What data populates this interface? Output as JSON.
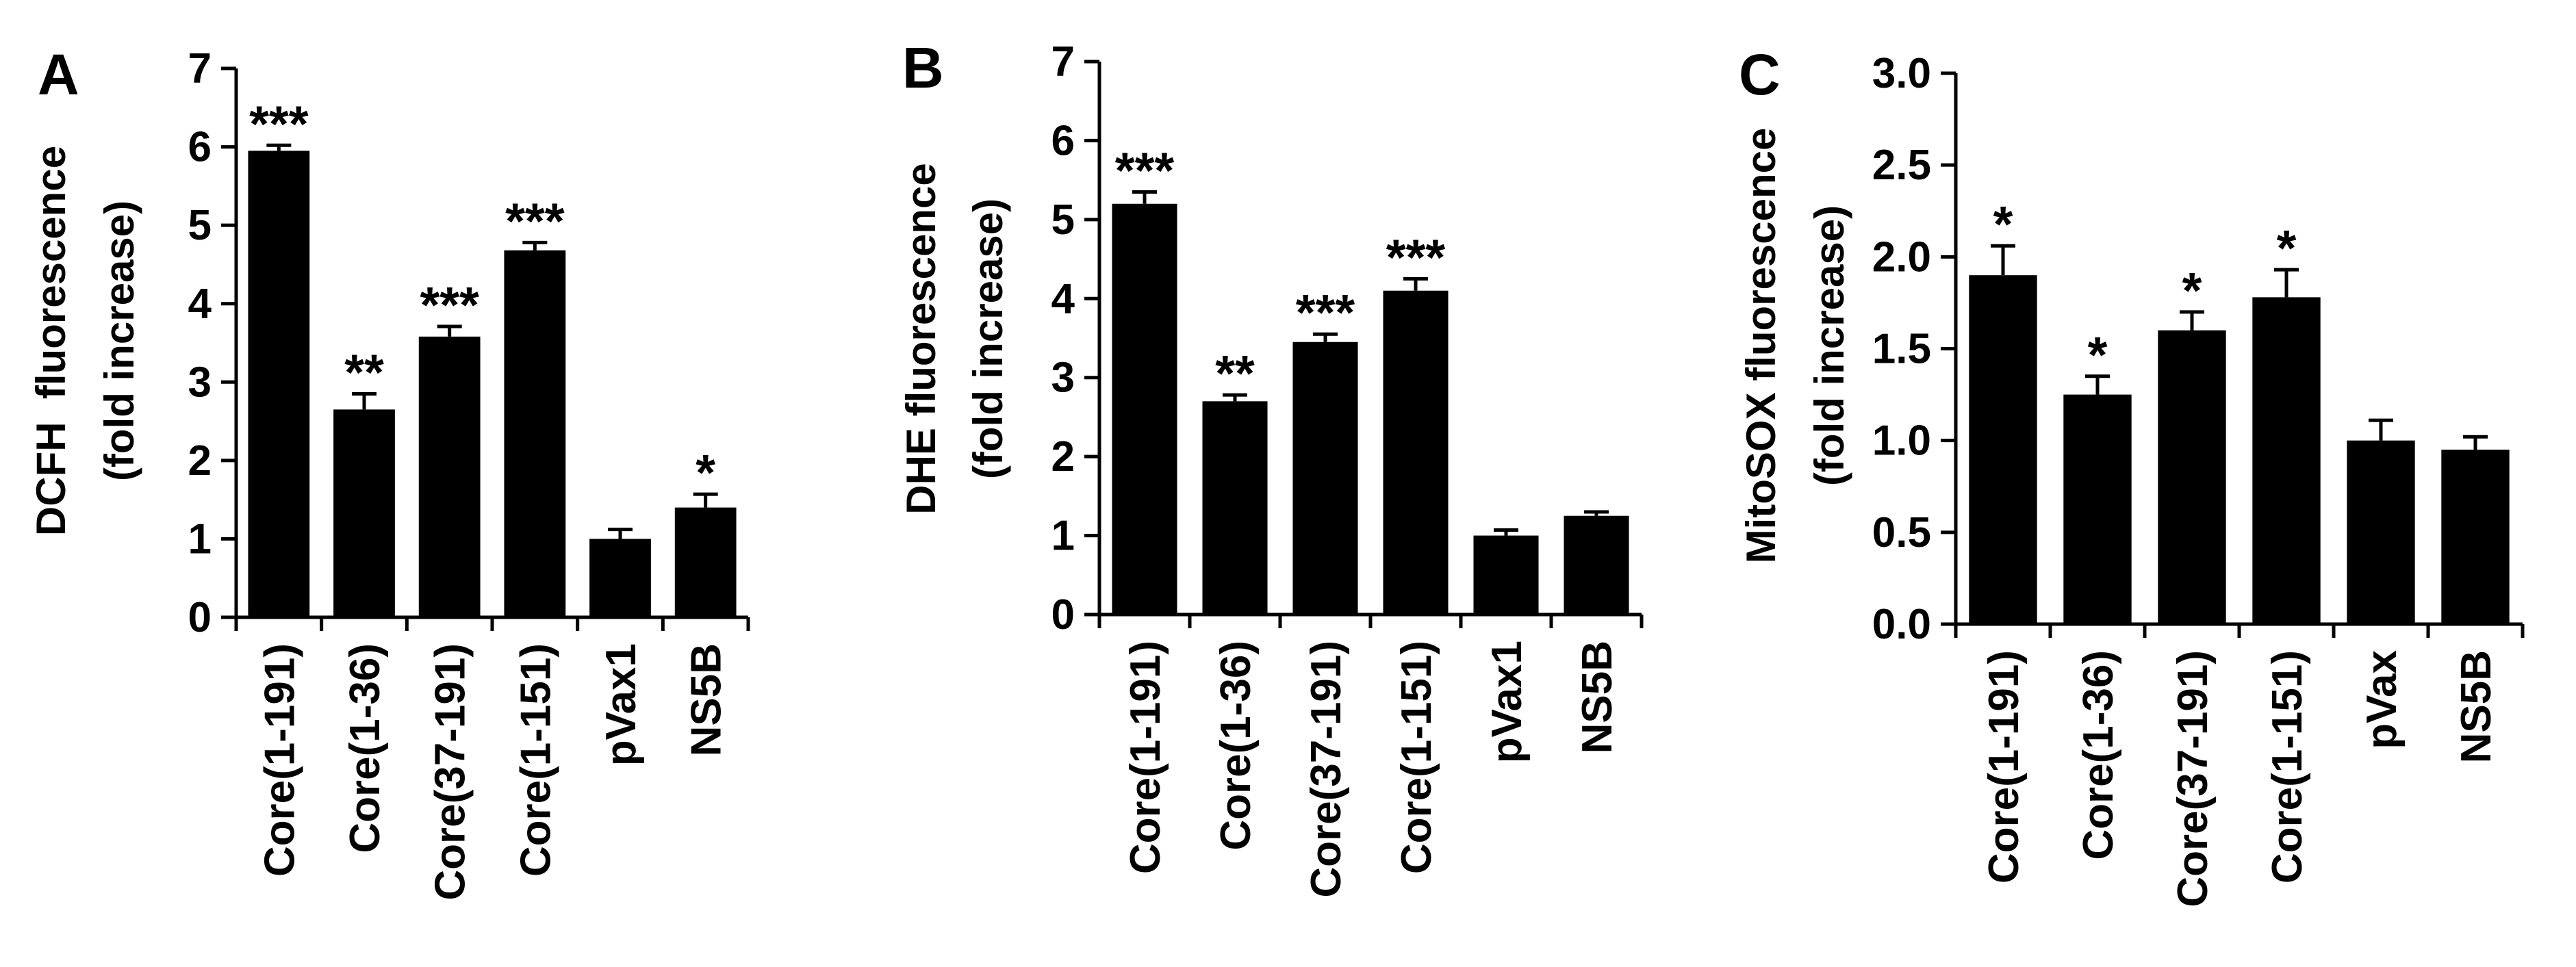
{
  "colors": {
    "bar": "#000000",
    "axis": "#000000",
    "background": "#ffffff"
  },
  "chart_data": [
    {
      "type": "bar",
      "panel": "A",
      "ylabel_line1": "DCFH  fluorescence",
      "ylabel_line2": "(fold increase)",
      "ylim": [
        0,
        7
      ],
      "yticks": [
        "0",
        "1",
        "2",
        "3",
        "4",
        "5",
        "6",
        "7"
      ],
      "categories": [
        "Core(1-191)",
        "Core(1-36)",
        "Core(37-191)",
        "Core(1-151)",
        "pVax1",
        "NS5B"
      ],
      "values": [
        5.95,
        2.65,
        3.58,
        4.68,
        1.0,
        1.4
      ],
      "errors": [
        0.07,
        0.2,
        0.13,
        0.1,
        0.12,
        0.17
      ],
      "significance": [
        "***",
        "**",
        "***",
        "***",
        "",
        "*"
      ]
    },
    {
      "type": "bar",
      "panel": "B",
      "ylabel_line1": "DHE fluorescence",
      "ylabel_line2": "(fold increase)",
      "ylim": [
        0,
        7
      ],
      "yticks": [
        "0",
        "1",
        "2",
        "3",
        "4",
        "5",
        "6",
        "7"
      ],
      "categories": [
        "Core(1-191)",
        "Core(1-36)",
        "Core(37-191)",
        "Core(1-151)",
        "pVax1",
        "NS5B"
      ],
      "values": [
        5.2,
        2.7,
        3.45,
        4.1,
        1.0,
        1.25
      ],
      "errors": [
        0.15,
        0.08,
        0.1,
        0.15,
        0.07,
        0.05
      ],
      "significance": [
        "***",
        "**",
        "***",
        "***",
        "",
        ""
      ]
    },
    {
      "type": "bar",
      "panel": "C",
      "ylabel_line1": "MitoSOX fluorescence",
      "ylabel_line2": "(fold increase)",
      "ylim": [
        0,
        3.0
      ],
      "yticks": [
        "0.0",
        "0.5",
        "1.0",
        "1.5",
        "2.0",
        "2.5",
        "3.0"
      ],
      "categories": [
        "Core(1-191)",
        "Core(1-36)",
        "Core(37-191)",
        "Core(1-151)",
        "pVax",
        "NS5B"
      ],
      "values": [
        1.9,
        1.25,
        1.6,
        1.78,
        1.0,
        0.95
      ],
      "errors": [
        0.16,
        0.1,
        0.1,
        0.15,
        0.11,
        0.07
      ],
      "significance": [
        "*",
        "*",
        "*",
        "*",
        "",
        ""
      ]
    }
  ]
}
